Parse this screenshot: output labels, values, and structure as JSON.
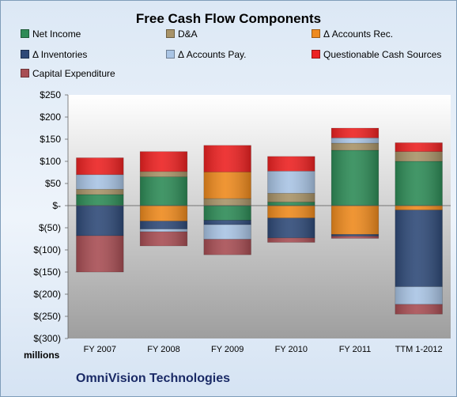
{
  "chart_data": {
    "type": "bar",
    "stacked": true,
    "title": "Free Cash Flow Components",
    "company": "OmniVision Technologies",
    "unit_label": "millions",
    "categories": [
      "FY 2007",
      "FY 2008",
      "FY 2009",
      "FY 2010",
      "FY 2011",
      "TTM 1-2012"
    ],
    "ylim": [
      -300,
      250
    ],
    "yticks": [
      250,
      200,
      150,
      100,
      50,
      0,
      -50,
      -100,
      -150,
      -200,
      -250,
      -300
    ],
    "ytick_labels": [
      "$250",
      "$200",
      "$150",
      "$100",
      "$50",
      "$-",
      "$(50)",
      "$(100)",
      "$(150)",
      "$(200)",
      "$(250)",
      "$(300)"
    ],
    "legend_position": "top",
    "grid": false,
    "series": [
      {
        "name": "Net Income",
        "color": "#2e8b57",
        "values": [
          25,
          65,
          -33,
          8,
          125,
          100
        ]
      },
      {
        "name": "D&A",
        "color": "#a89368",
        "values": [
          12,
          12,
          16,
          20,
          16,
          22
        ]
      },
      {
        "name": "Δ Accounts Rec.",
        "color": "#ee8a1e",
        "values": [
          0,
          -35,
          60,
          -28,
          -65,
          -10
        ]
      },
      {
        "name": "Δ Inventories",
        "color": "#2f4a78",
        "values": [
          -68,
          -18,
          -10,
          -45,
          -4,
          -173
        ]
      },
      {
        "name": "Δ Accounts Pay.",
        "color": "#a9c4e4",
        "values": [
          33,
          -6,
          -33,
          50,
          12,
          -40
        ]
      },
      {
        "name": "Questionable Cash Sources",
        "color": "#ec2222",
        "values": [
          38,
          45,
          60,
          33,
          22,
          20
        ]
      },
      {
        "name": "Capital Expenditure",
        "color": "#a84e54",
        "values": [
          -82,
          -32,
          -35,
          -10,
          -5,
          -22
        ]
      }
    ]
  }
}
